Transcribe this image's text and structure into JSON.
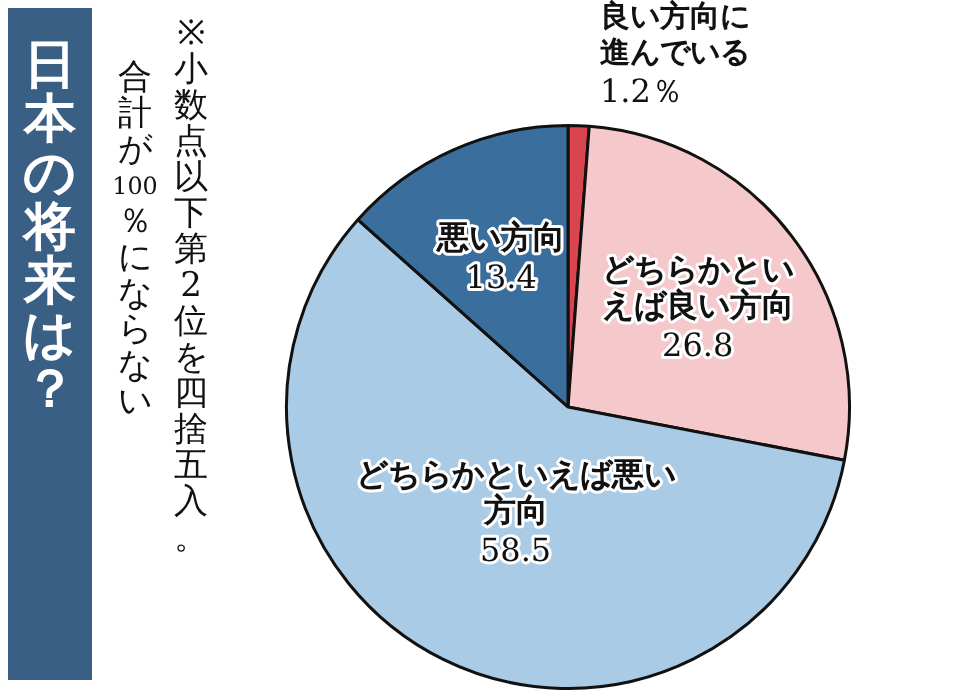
{
  "chart_data": {
    "type": "pie",
    "title": "日本の将来は？",
    "annotations": [
      "※小数点以下第2位を四捨五入。",
      "合計が100％にならない"
    ],
    "categories": [
      "良い方向に進んでいる",
      "どちらかといえば良い方向",
      "どちらかといえば悪い方向",
      "悪い方向"
    ],
    "values": [
      1.2,
      26.8,
      58.5,
      13.4
    ],
    "value_labels": [
      "1.2％",
      "26.8",
      "58.5",
      "13.4"
    ],
    "colors": [
      "#d8454f",
      "#f5c9cb",
      "#a9cbe6",
      "#3a6e9c"
    ]
  }
}
